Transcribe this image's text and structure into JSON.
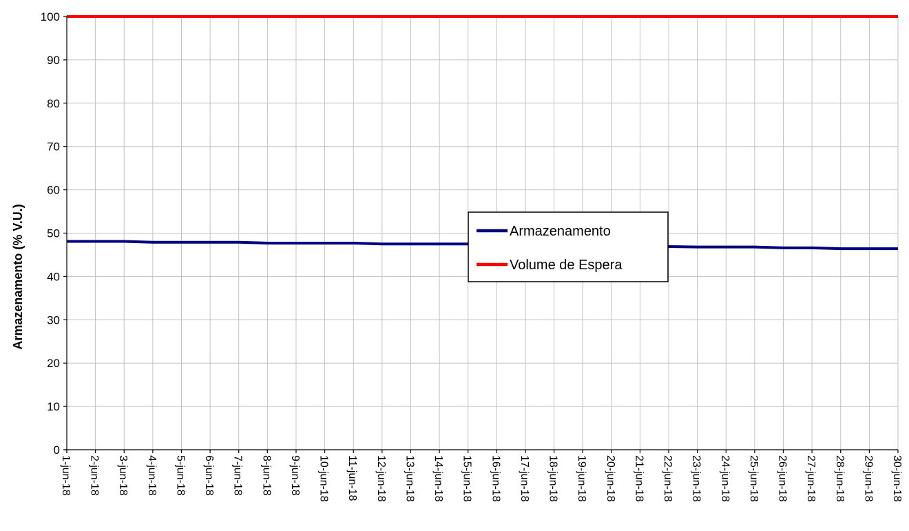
{
  "chart_data": {
    "type": "line",
    "title": "",
    "xlabel": "",
    "ylabel": "Armazenamento (% V.U.)",
    "ylim": [
      0,
      100
    ],
    "yticks": [
      0,
      10,
      20,
      30,
      40,
      50,
      60,
      70,
      80,
      90,
      100
    ],
    "grid": true,
    "legend_position": "center",
    "categories": [
      "1-jun-18",
      "2-jun-18",
      "3-jun-18",
      "4-jun-18",
      "5-jun-18",
      "6-jun-18",
      "7-jun-18",
      "8-jun-18",
      "9-jun-18",
      "10-jun-18",
      "11-jun-18",
      "12-jun-18",
      "13-jun-18",
      "14-jun-18",
      "15-jun-18",
      "16-jun-18",
      "17-jun-18",
      "18-jun-18",
      "19-jun-18",
      "20-jun-18",
      "21-jun-18",
      "22-jun-18",
      "23-jun-18",
      "24-jun-18",
      "25-jun-18",
      "26-jun-18",
      "27-jun-18",
      "28-jun-18",
      "29-jun-18",
      "30-jun-18"
    ],
    "series": [
      {
        "name": "Armazenamento",
        "color": "#000080",
        "values": [
          48.1,
          48.1,
          48.1,
          47.9,
          47.9,
          47.9,
          47.9,
          47.7,
          47.7,
          47.7,
          47.7,
          47.5,
          47.5,
          47.5,
          47.5,
          47.3,
          47.3,
          47.3,
          47.2,
          47.2,
          47.1,
          46.9,
          46.8,
          46.8,
          46.8,
          46.6,
          46.6,
          46.4,
          46.4,
          46.4
        ]
      },
      {
        "name": "Volume de Espera",
        "color": "#ff0000",
        "values": [
          100,
          100,
          100,
          100,
          100,
          100,
          100,
          100,
          100,
          100,
          100,
          100,
          100,
          100,
          100,
          100,
          100,
          100,
          100,
          100,
          100,
          100,
          100,
          100,
          100,
          100,
          100,
          100,
          100,
          100
        ]
      }
    ]
  }
}
